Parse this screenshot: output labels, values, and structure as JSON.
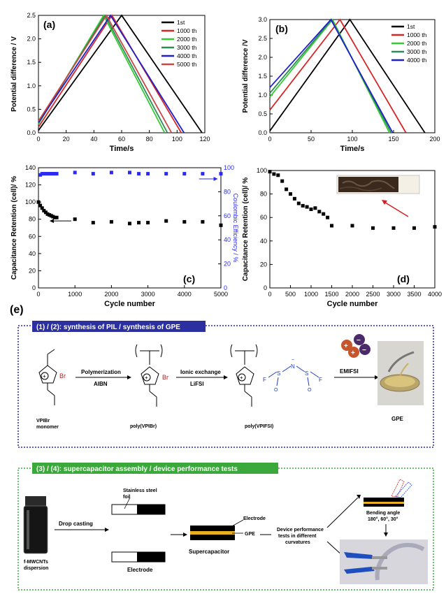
{
  "figure_label_e": "(e)",
  "chart_data": [
    {
      "panel": "(a)",
      "type": "line",
      "xlabel": "Time/s",
      "ylabel": "Potential difference / V",
      "xlim": [
        0,
        120
      ],
      "ylim": [
        0,
        2.5
      ],
      "xticks": [
        "0",
        "20",
        "40",
        "60",
        "80",
        "100",
        "120"
      ],
      "yticks": [
        "0.0",
        "0.5",
        "1.0",
        "1.5",
        "2.0",
        "2.5"
      ],
      "legend_position": "top-right",
      "series": [
        {
          "name": "1st",
          "color": "#000000",
          "points": [
            [
              0,
              0.05
            ],
            [
              60,
              2.5
            ],
            [
              118,
              0
            ]
          ]
        },
        {
          "name": "1000 th",
          "color": "#d62728",
          "points": [
            [
              0,
              0.12
            ],
            [
              53,
              2.5
            ],
            [
              103,
              0
            ]
          ]
        },
        {
          "name": "2000 th",
          "color": "#33cc33",
          "points": [
            [
              0,
              0.18
            ],
            [
              47,
              2.5
            ],
            [
              91,
              0
            ]
          ]
        },
        {
          "name": "3000 th",
          "color": "#2e8b57",
          "points": [
            [
              0,
              0.2
            ],
            [
              48,
              2.5
            ],
            [
              93,
              0
            ]
          ]
        },
        {
          "name": "4000 th",
          "color": "#1f1fcc",
          "points": [
            [
              0,
              0.22
            ],
            [
              52,
              2.5
            ],
            [
              105,
              0
            ]
          ]
        },
        {
          "name": "5000 th",
          "color": "#cc4444",
          "points": [
            [
              0,
              0.25
            ],
            [
              49,
              2.5
            ],
            [
              96,
              0
            ]
          ]
        }
      ]
    },
    {
      "panel": "(b)",
      "type": "line",
      "xlabel": "Time/s",
      "ylabel": "Potential difference /V",
      "xlim": [
        0,
        200
      ],
      "ylim": [
        0,
        3.0
      ],
      "xticks": [
        "0",
        "50",
        "100",
        "150",
        "200"
      ],
      "yticks": [
        "0.0",
        "0.5",
        "1.0",
        "1.5",
        "2.0",
        "2.5",
        "3.0"
      ],
      "legend_position": "top-right",
      "series": [
        {
          "name": "1st",
          "color": "#000000",
          "points": [
            [
              0,
              0.05
            ],
            [
              97,
              3.0
            ],
            [
              188,
              0
            ]
          ]
        },
        {
          "name": "1000 th",
          "color": "#d62728",
          "points": [
            [
              0,
              0.6
            ],
            [
              85,
              3.0
            ],
            [
              165,
              0
            ]
          ]
        },
        {
          "name": "2000 th",
          "color": "#33cc33",
          "points": [
            [
              0,
              0.95
            ],
            [
              76,
              3.0
            ],
            [
              145,
              0
            ]
          ]
        },
        {
          "name": "3000 th",
          "color": "#2e8b57",
          "points": [
            [
              0,
              1.05
            ],
            [
              75,
              3.0
            ],
            [
              147,
              0
            ]
          ]
        },
        {
          "name": "4000 th",
          "color": "#1f1fcc",
          "points": [
            [
              0,
              1.2
            ],
            [
              74,
              3.0
            ],
            [
              149,
              0
            ]
          ]
        }
      ]
    },
    {
      "panel": "(c)",
      "type": "scatter",
      "xlabel": "Cycle number",
      "ylabel": "Capacitance Retention (cell)/ %",
      "y2label": "Coulombic Efficiency / %",
      "xlim": [
        0,
        5000
      ],
      "ylim": [
        0,
        140
      ],
      "y2lim": [
        0,
        100
      ],
      "xticks": [
        "0",
        "1000",
        "2000",
        "3000",
        "4000",
        "5000"
      ],
      "yticks": [
        "0",
        "20",
        "40",
        "60",
        "80",
        "100",
        "120",
        "140"
      ],
      "y2ticks": [
        "0",
        "20",
        "40",
        "60",
        "80",
        "100"
      ],
      "retention": [
        [
          0,
          100
        ],
        [
          50,
          96
        ],
        [
          100,
          93
        ],
        [
          150,
          90
        ],
        [
          200,
          88
        ],
        [
          250,
          86
        ],
        [
          300,
          85
        ],
        [
          350,
          84
        ],
        [
          400,
          83
        ],
        [
          450,
          82
        ],
        [
          500,
          82
        ],
        [
          1000,
          80
        ],
        [
          1500,
          76
        ],
        [
          2000,
          77
        ],
        [
          2500,
          75
        ],
        [
          2750,
          76
        ],
        [
          3000,
          76
        ],
        [
          3500,
          78
        ],
        [
          4000,
          77
        ],
        [
          4500,
          77
        ],
        [
          5000,
          73
        ]
      ],
      "efficiency": [
        [
          50,
          94
        ],
        [
          100,
          95
        ],
        [
          150,
          95
        ],
        [
          200,
          95
        ],
        [
          250,
          95
        ],
        [
          300,
          95
        ],
        [
          350,
          95
        ],
        [
          400,
          95
        ],
        [
          450,
          95
        ],
        [
          500,
          95
        ],
        [
          1000,
          96
        ],
        [
          1500,
          95
        ],
        [
          2000,
          96
        ],
        [
          2500,
          96
        ],
        [
          2750,
          95
        ],
        [
          3000,
          95
        ],
        [
          3500,
          95
        ],
        [
          4000,
          95
        ],
        [
          4500,
          95
        ],
        [
          5000,
          95
        ]
      ]
    },
    {
      "panel": "(d)",
      "type": "scatter",
      "xlabel": "Cycle number",
      "ylabel": "Capacitance Retention (cell)/ %",
      "xlim": [
        0,
        4000
      ],
      "ylim": [
        0,
        100
      ],
      "xticks": [
        "0",
        "500",
        "1000",
        "1500",
        "2000",
        "2500",
        "3000",
        "3500",
        "4000"
      ],
      "yticks": [
        "0",
        "20",
        "40",
        "60",
        "80",
        "100"
      ],
      "retention": [
        [
          0,
          99
        ],
        [
          100,
          97
        ],
        [
          200,
          96
        ],
        [
          300,
          91
        ],
        [
          400,
          84
        ],
        [
          500,
          80
        ],
        [
          600,
          76
        ],
        [
          700,
          72
        ],
        [
          800,
          70
        ],
        [
          900,
          69
        ],
        [
          1000,
          67
        ],
        [
          1100,
          68
        ],
        [
          1200,
          65
        ],
        [
          1300,
          63
        ],
        [
          1400,
          60
        ],
        [
          1500,
          53
        ],
        [
          2000,
          53
        ],
        [
          2500,
          51
        ],
        [
          3000,
          51
        ],
        [
          3500,
          51
        ],
        [
          4000,
          52
        ]
      ]
    }
  ],
  "scheme1": {
    "header": "(1) / (2):  synthesis of PIL / synthesis of GPE",
    "br": "Br",
    "plus": "+",
    "minus": "−",
    "n": "N",
    "f": "F",
    "s": "S",
    "o": "O",
    "monomer_label_1": "VPIBr",
    "monomer_label_2": "monomer",
    "step1_top": "Polymerization",
    "step1_bottom": "AIBN",
    "polymer1_label": "poly(VPIBr)",
    "step2_top": "Ionic exchange",
    "step2_bottom": "LiFSI",
    "polymer2_label": "poly(VPIFSI)",
    "step3_top": "EMIFSI",
    "gpe_label": "GPE"
  },
  "scheme2": {
    "header": "(3) / (4):  supercapacitor assembly / device performance tests",
    "dispersion_1": "f-MWCNTs",
    "dispersion_2": "dispersion",
    "step_drop": "Drop casting",
    "foil_1": "Stainless steel",
    "foil_2": "foil",
    "electrode_label": "Electrode",
    "sc_electrode": "Electrode",
    "sc_gpe": "GPE",
    "supercapacitor_label": "Supercapacitor",
    "tests_1": "Device performance",
    "tests_2": "tests in different",
    "tests_3": "curvatures",
    "bending_1": "Bending angle",
    "bending_2": "180°, 60°, 30°"
  }
}
